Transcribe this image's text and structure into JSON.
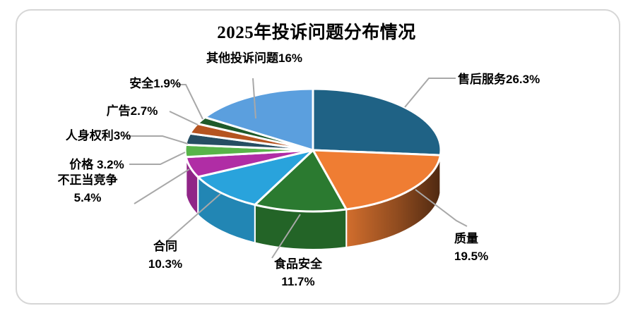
{
  "page": {
    "background": "#FFFFFF",
    "card_border_color": "#D6D6D6"
  },
  "chart_data": {
    "type": "pie",
    "style": "3d-pie",
    "title": "2025年投诉问题分布情况",
    "unit": "%",
    "start_angle_deg": 0,
    "direction": "clockwise",
    "legend": "none",
    "leader_line_color": "#A8A8A8",
    "slice_separator_color": "#FFFFFF",
    "slices": [
      {
        "key": "aftersales",
        "name": "售后服务",
        "value": 26.3,
        "label": "售后服务26.3%",
        "color": "#1F6285"
      },
      {
        "key": "quality",
        "name": "质量",
        "value": 19.5,
        "label": "质量\n19.5%",
        "color": "#EF7D33"
      },
      {
        "key": "food-safety",
        "name": "食品安全",
        "value": 11.7,
        "label": "食品安全\n11.7%",
        "color": "#2B7A30"
      },
      {
        "key": "contract",
        "name": "合同",
        "value": 10.3,
        "label": "合同\n10.3%",
        "color": "#29A3DC"
      },
      {
        "key": "unfair-competition",
        "name": "不正当竞争",
        "value": 5.4,
        "label": "不正当竞争\n5.4%",
        "color": "#B02DA5"
      },
      {
        "key": "price",
        "name": "价格",
        "value": 3.2,
        "label": "价格 3.2%",
        "color": "#58B449"
      },
      {
        "key": "personal-rights",
        "name": "人身权利",
        "value": 3,
        "label": "人身权利3%",
        "color": "#264E63"
      },
      {
        "key": "advertising",
        "name": "广告",
        "value": 2.7,
        "label": "广告2.7%",
        "color": "#B55420"
      },
      {
        "key": "safety",
        "name": "安全",
        "value": 1.9,
        "label": "安全1.9%",
        "color": "#1E5A2A"
      },
      {
        "key": "other",
        "name": "其他投诉问题",
        "value": 16,
        "label": "其他投诉问题16%",
        "color": "#5B9FDE"
      }
    ]
  }
}
